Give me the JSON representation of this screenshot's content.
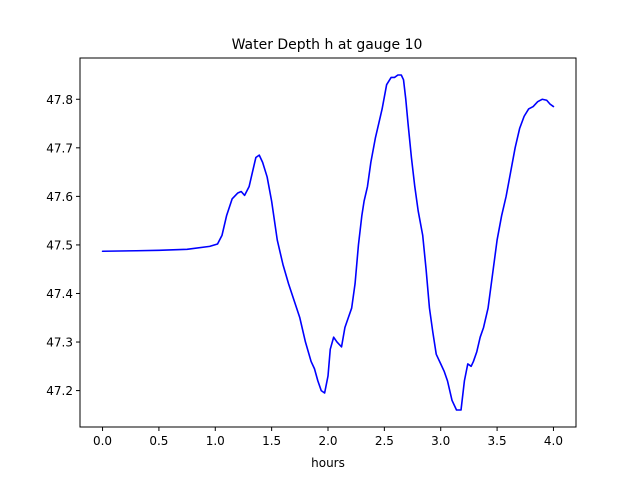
{
  "chart_data": {
    "type": "line",
    "title": "Water Depth h at gauge 10",
    "xlabel": "hours",
    "ylabel": "",
    "xlim": [
      -0.2,
      4.2
    ],
    "ylim": [
      47.125,
      47.885
    ],
    "xticks": [
      0.0,
      0.5,
      1.0,
      1.5,
      2.0,
      2.5,
      3.0,
      3.5,
      4.0
    ],
    "xtick_labels": [
      "0.0",
      "0.5",
      "1.0",
      "1.5",
      "2.0",
      "2.5",
      "3.0",
      "3.5",
      "4.0"
    ],
    "yticks": [
      47.2,
      47.3,
      47.4,
      47.5,
      47.6,
      47.7,
      47.8
    ],
    "ytick_labels": [
      "47.2",
      "47.3",
      "47.4",
      "47.5",
      "47.6",
      "47.7",
      "47.8"
    ],
    "grid": false,
    "series": [
      {
        "color": "#0000ff",
        "x": [
          0.0,
          0.3,
          0.5,
          0.75,
          0.95,
          1.02,
          1.06,
          1.1,
          1.15,
          1.2,
          1.23,
          1.26,
          1.3,
          1.33,
          1.36,
          1.39,
          1.42,
          1.46,
          1.5,
          1.55,
          1.6,
          1.65,
          1.7,
          1.75,
          1.8,
          1.85,
          1.88,
          1.91,
          1.94,
          1.97,
          2.0,
          2.02,
          2.05,
          2.08,
          2.12,
          2.15,
          2.18,
          2.21,
          2.24,
          2.27,
          2.3,
          2.32,
          2.35,
          2.38,
          2.42,
          2.45,
          2.48,
          2.52,
          2.56,
          2.59,
          2.62,
          2.65,
          2.67,
          2.69,
          2.71,
          2.74,
          2.77,
          2.8,
          2.84,
          2.87,
          2.9,
          2.93,
          2.96,
          2.98,
          3.0,
          3.03,
          3.06,
          3.1,
          3.14,
          3.18,
          3.21,
          3.24,
          3.27,
          3.29,
          3.32,
          3.35,
          3.38,
          3.42,
          3.46,
          3.5,
          3.54,
          3.58,
          3.62,
          3.66,
          3.7,
          3.74,
          3.78,
          3.82,
          3.86,
          3.9,
          3.94,
          3.97,
          4.0
        ],
        "y": [
          47.487,
          47.488,
          47.489,
          47.491,
          47.497,
          47.502,
          47.52,
          47.56,
          47.595,
          47.607,
          47.61,
          47.602,
          47.62,
          47.65,
          47.68,
          47.685,
          47.67,
          47.64,
          47.59,
          47.51,
          47.46,
          47.42,
          47.385,
          47.35,
          47.3,
          47.26,
          47.245,
          47.22,
          47.2,
          47.195,
          47.23,
          47.285,
          47.31,
          47.3,
          47.29,
          47.33,
          47.35,
          47.37,
          47.42,
          47.5,
          47.56,
          47.59,
          47.62,
          47.67,
          47.72,
          47.75,
          47.78,
          47.83,
          47.845,
          47.845,
          47.85,
          47.85,
          47.84,
          47.8,
          47.75,
          47.68,
          47.62,
          47.57,
          47.52,
          47.45,
          47.37,
          47.32,
          47.275,
          47.265,
          47.255,
          47.24,
          47.22,
          47.18,
          47.16,
          47.16,
          47.22,
          47.255,
          47.25,
          47.26,
          47.28,
          47.31,
          47.33,
          47.37,
          47.44,
          47.51,
          47.56,
          47.6,
          47.65,
          47.7,
          47.74,
          47.765,
          47.78,
          47.785,
          47.795,
          47.8,
          47.798,
          47.79,
          47.785
        ]
      }
    ]
  }
}
